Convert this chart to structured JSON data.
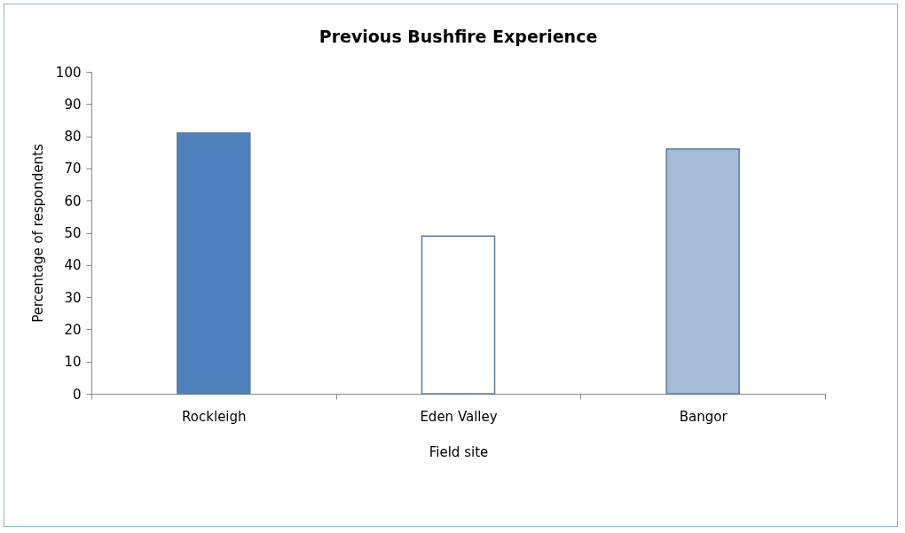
{
  "chart_data": {
    "type": "bar",
    "title": "Previous Bushfire Experience",
    "xlabel": "Field site",
    "ylabel": "Percentage of respondents",
    "categories": [
      "Rockleigh",
      "Eden Valley",
      "Bangor"
    ],
    "values": [
      81,
      49,
      76
    ],
    "colors": [
      "#4f81bd",
      "#ffffff",
      "#a7bcd6"
    ],
    "ylim": [
      0,
      100
    ],
    "yticks": [
      0,
      10,
      20,
      30,
      40,
      50,
      60,
      70,
      80,
      90,
      100
    ],
    "grid": false
  }
}
